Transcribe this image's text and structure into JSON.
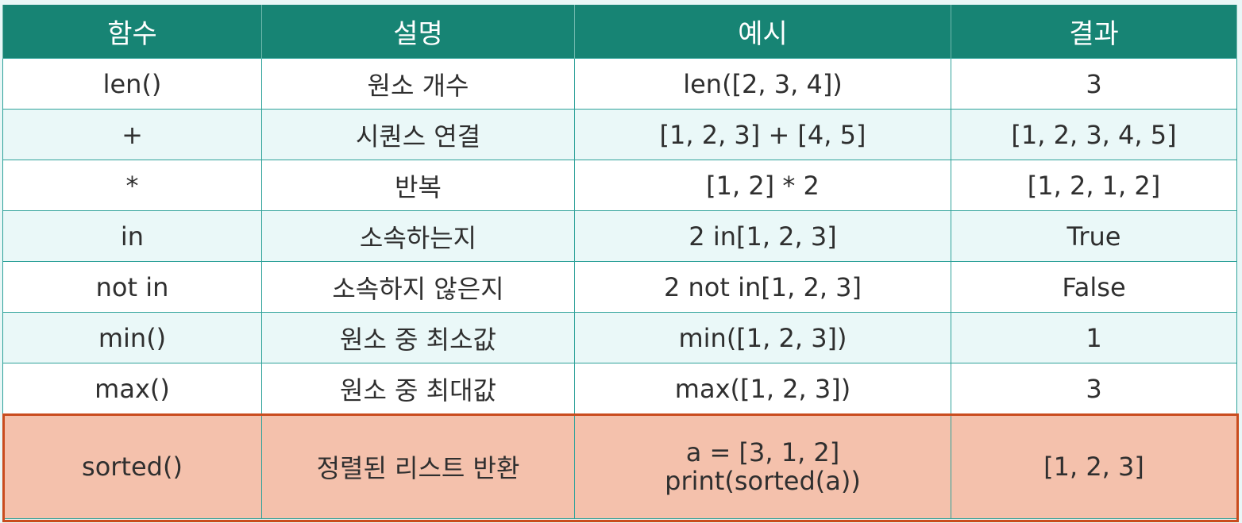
{
  "table": {
    "headers": [
      "함수",
      "설명",
      "예시",
      "결과"
    ],
    "rows": [
      {
        "func": "len()",
        "desc": "원소 개수",
        "example": [
          "len([2, 3, 4])"
        ],
        "result": "3"
      },
      {
        "func": "+",
        "desc": "시퀀스 연결",
        "example": [
          "[1, 2, 3] + [4, 5]"
        ],
        "result": "[1, 2, 3, 4, 5]"
      },
      {
        "func": "*",
        "desc": "반복",
        "example": [
          "[1, 2] * 2"
        ],
        "result": "[1, 2, 1, 2]"
      },
      {
        "func": "in",
        "desc": "소속하는지",
        "example": [
          "2 in[1, 2, 3]"
        ],
        "result": "True"
      },
      {
        "func": "not in",
        "desc": "소속하지 않은지",
        "example": [
          "2 not in[1, 2, 3]"
        ],
        "result": "False"
      },
      {
        "func": "min()",
        "desc": "원소 중 최소값",
        "example": [
          "min([1, 2, 3])"
        ],
        "result": "1"
      },
      {
        "func": "max()",
        "desc": "원소 중 최대값",
        "example": [
          "max([1, 2, 3])"
        ],
        "result": "3"
      },
      {
        "func": "sorted()",
        "desc": "정렬된 리스트 반환",
        "example": [
          "a = [3, 1, 2]",
          "print(sorted(a))"
        ],
        "result": "[1, 2, 3]"
      }
    ],
    "highlighted_row": "sorted()"
  },
  "colors": {
    "header_bg": "#178474",
    "row_alt_bg": "#eaf8f8",
    "highlight_bg": "#f4c1ac",
    "highlight_border": "#c94c1e"
  }
}
